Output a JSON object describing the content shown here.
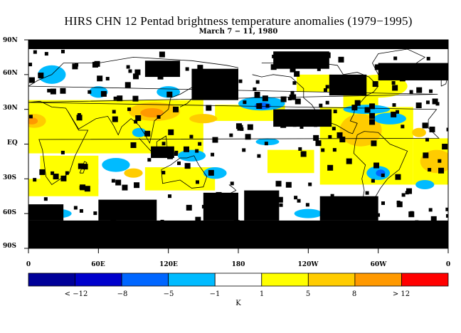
{
  "title": "HIRS CHN 12 Pentad brightness temperature anomalies (1979−1995)",
  "subtitle": "March 7 − 11, 1980",
  "map": {
    "projection": "equirectangular, 0 to 360 longitude",
    "lat_labels": [
      "90N",
      "60N",
      "30N",
      "EQ",
      "30S",
      "60S",
      "90S"
    ],
    "lon_labels": [
      "0",
      "60E",
      "120E",
      "180",
      "120W",
      "60W",
      "0"
    ],
    "missing_color": "#000000",
    "coastline_color": "#000000"
  },
  "colorbar": {
    "colors": [
      "#000099",
      "#0000cc",
      "#0066ff",
      "#00bbff",
      "#ffffff",
      "#ffff00",
      "#ffcc00",
      "#ff9900",
      "#ff0000"
    ],
    "tick_labels": [
      "< −12",
      "−8",
      "−5",
      "−1",
      "1",
      "5",
      "8",
      "> 12"
    ],
    "unit": "K"
  }
}
